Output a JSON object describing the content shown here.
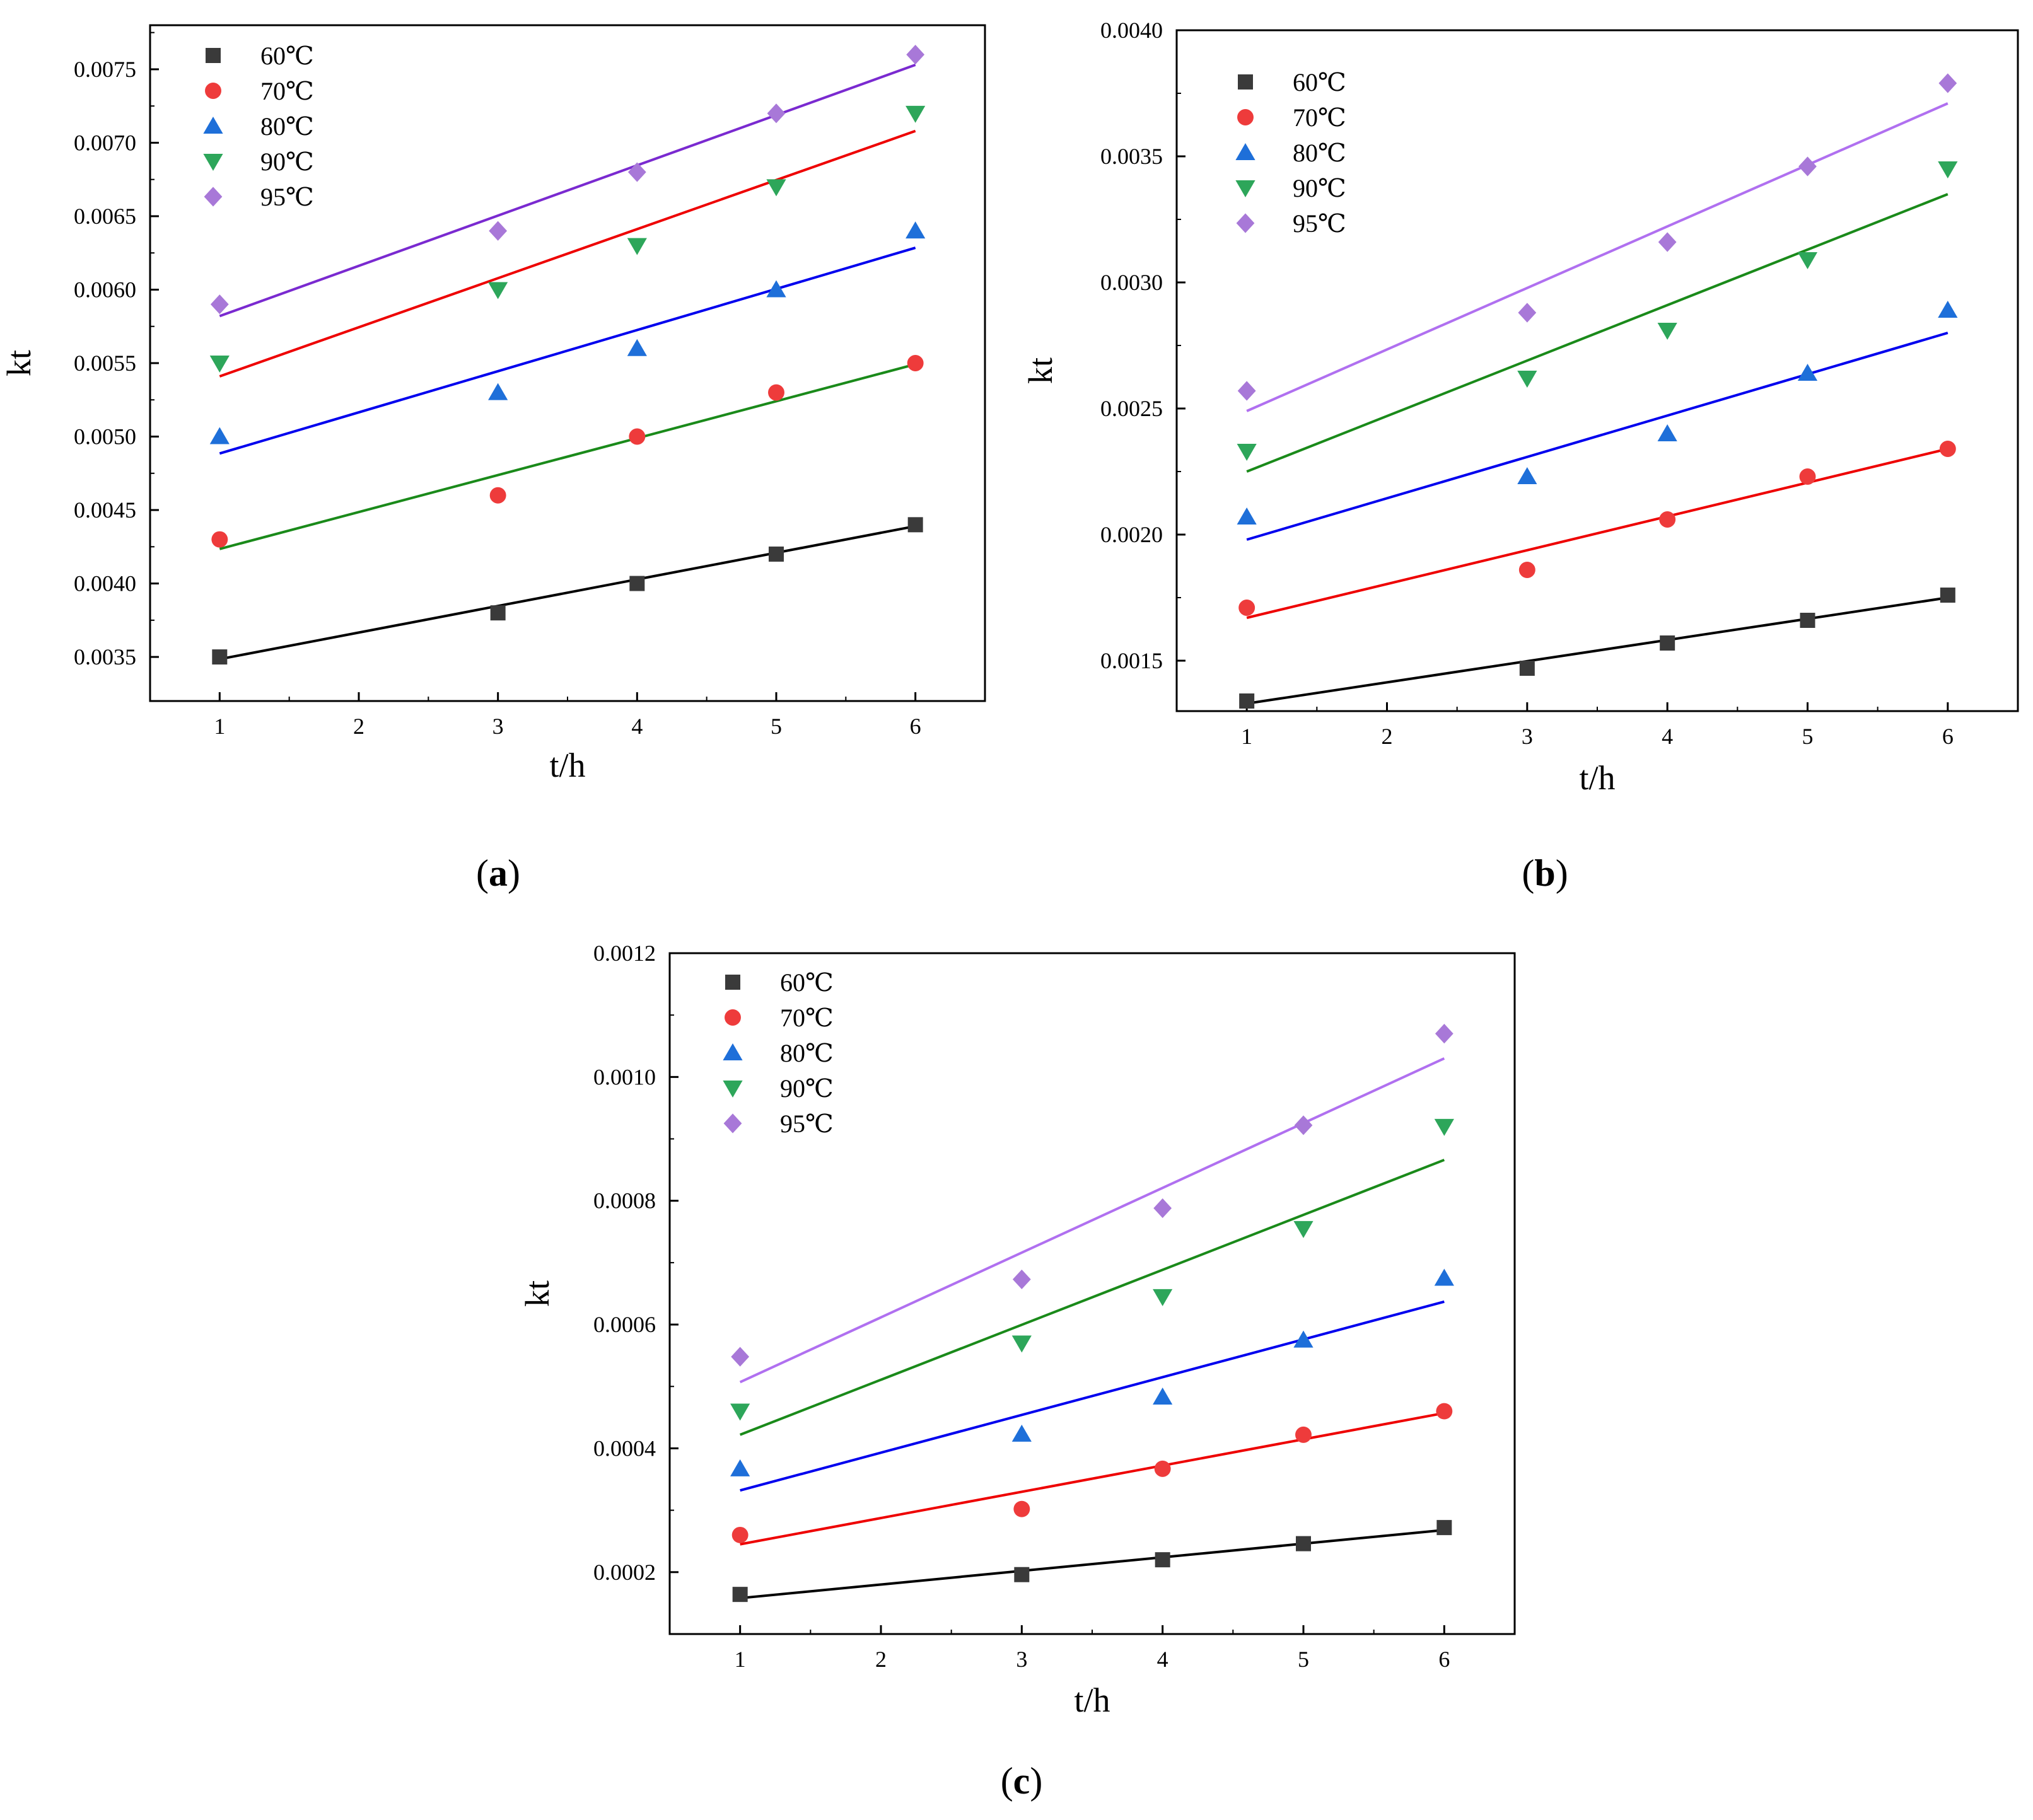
{
  "figure": {
    "panels": [
      {
        "label_open": "(",
        "label_letter": "a",
        "label_close": ")"
      },
      {
        "label_open": "(",
        "label_letter": "b",
        "label_close": ")"
      },
      {
        "label_open": "(",
        "label_letter": "c",
        "label_close": ")"
      }
    ]
  },
  "chart_data": [
    {
      "type": "scatter",
      "panel": "a",
      "title": "",
      "xlabel": "t/h",
      "ylabel": "kt",
      "xlim": [
        0.5,
        6.5
      ],
      "ylim": [
        0.0032,
        0.0078
      ],
      "x_ticks": [
        1,
        2,
        3,
        4,
        5,
        6
      ],
      "x_tick_labels": [
        "1",
        "2",
        "3",
        "4",
        "5",
        "6"
      ],
      "y_ticks": [
        0.0035,
        0.004,
        0.0045,
        0.005,
        0.0055,
        0.006,
        0.0065,
        0.007,
        0.0075
      ],
      "y_tick_labels": [
        "0.0035",
        "0.0040",
        "0.0045",
        "0.0050",
        "0.0055",
        "0.0060",
        "0.0065",
        "0.0070",
        "0.0075"
      ],
      "legend_position": "top-left",
      "x": [
        1,
        3,
        4,
        5,
        6
      ],
      "series": [
        {
          "name": "60℃",
          "marker": "square",
          "marker_color": "#3a3a3a",
          "line_color": "#000000",
          "values": [
            0.0035,
            0.0038,
            0.004,
            0.0042,
            0.0044
          ],
          "fit": [
            0.003485,
            0.00439
          ]
        },
        {
          "name": "70℃",
          "marker": "circle",
          "marker_color": "#ee3b3b",
          "line_color": "#1a8a1a",
          "values": [
            0.0043,
            0.0046,
            0.005,
            0.0053,
            0.0055
          ],
          "fit": [
            0.004235,
            0.005492
          ]
        },
        {
          "name": "80℃",
          "marker": "triangle-up",
          "marker_color": "#1e6fd9",
          "line_color": "#0000ee",
          "values": [
            0.005,
            0.0053,
            0.0056,
            0.006,
            0.0064
          ],
          "fit": [
            0.004885,
            0.006285
          ]
        },
        {
          "name": "90℃",
          "marker": "triangle-down",
          "marker_color": "#2da65a",
          "line_color": "#ee0000",
          "values": [
            0.0055,
            0.006,
            0.0063,
            0.0067,
            0.0072
          ],
          "fit": [
            0.00541,
            0.00708
          ]
        },
        {
          "name": "95℃",
          "marker": "diamond",
          "marker_color": "#a878d8",
          "line_color": "#7a2ad0",
          "values": [
            0.0059,
            0.0064,
            0.0068,
            0.0072,
            0.0076
          ],
          "fit": [
            0.00582,
            0.00753
          ]
        }
      ]
    },
    {
      "type": "scatter",
      "panel": "b",
      "title": "",
      "xlabel": "t/h",
      "ylabel": "kt",
      "xlim": [
        0.5,
        6.5
      ],
      "ylim": [
        0.0013,
        0.004
      ],
      "x_ticks": [
        1,
        2,
        3,
        4,
        5,
        6
      ],
      "x_tick_labels": [
        "1",
        "2",
        "3",
        "4",
        "5",
        "6"
      ],
      "y_ticks": [
        0.0015,
        0.002,
        0.0025,
        0.003,
        0.0035,
        0.004
      ],
      "y_tick_labels": [
        "0.0015",
        "0.0020",
        "0.0025",
        "0.0030",
        "0.0035",
        "0.0040"
      ],
      "legend_position": "top-left",
      "x": [
        1,
        3,
        4,
        5,
        6
      ],
      "series": [
        {
          "name": "60℃",
          "marker": "square",
          "marker_color": "#3a3a3a",
          "line_color": "#000000",
          "values": [
            0.00134,
            0.00147,
            0.00157,
            0.00166,
            0.00176
          ],
          "fit": [
            0.00133,
            0.00175
          ]
        },
        {
          "name": "70℃",
          "marker": "circle",
          "marker_color": "#ee3b3b",
          "line_color": "#ee0000",
          "values": [
            0.00171,
            0.00186,
            0.00206,
            0.00223,
            0.00234
          ],
          "fit": [
            0.00167,
            0.00234
          ]
        },
        {
          "name": "80℃",
          "marker": "triangle-up",
          "marker_color": "#1e6fd9",
          "line_color": "#0000ee",
          "values": [
            0.00207,
            0.00223,
            0.0024,
            0.00264,
            0.00289
          ],
          "fit": [
            0.00198,
            0.0028
          ]
        },
        {
          "name": "90℃",
          "marker": "triangle-down",
          "marker_color": "#2da65a",
          "line_color": "#1a8a1a",
          "values": [
            0.00233,
            0.00262,
            0.00281,
            0.00309,
            0.00345
          ],
          "fit": [
            0.00225,
            0.00335
          ]
        },
        {
          "name": "95℃",
          "marker": "diamond",
          "marker_color": "#a878d8",
          "line_color": "#b070f0",
          "values": [
            0.00257,
            0.00288,
            0.00316,
            0.00346,
            0.00379
          ],
          "fit": [
            0.00249,
            0.00371
          ]
        }
      ]
    },
    {
      "type": "scatter",
      "panel": "c",
      "title": "",
      "xlabel": "t/h",
      "ylabel": "kt",
      "xlim": [
        0.5,
        6.5
      ],
      "ylim": [
        0.0001,
        0.0012
      ],
      "x_ticks": [
        1,
        2,
        3,
        4,
        5,
        6
      ],
      "x_tick_labels": [
        "1",
        "2",
        "3",
        "4",
        "5",
        "6"
      ],
      "y_ticks": [
        0.0002,
        0.0004,
        0.0006,
        0.0008,
        0.001,
        0.0012
      ],
      "y_tick_labels": [
        "0.0002",
        "0.0004",
        "0.0006",
        "0.0008",
        "0.0010",
        "0.0012"
      ],
      "legend_position": "top-left",
      "x": [
        1,
        3,
        4,
        5,
        6
      ],
      "series": [
        {
          "name": "60℃",
          "marker": "square",
          "marker_color": "#3a3a3a",
          "line_color": "#000000",
          "values": [
            0.000164,
            0.000196,
            0.00022,
            0.000246,
            0.000272
          ],
          "fit": [
            0.000158,
            0.000268
          ]
        },
        {
          "name": "70℃",
          "marker": "circle",
          "marker_color": "#ee3b3b",
          "line_color": "#ee0000",
          "values": [
            0.00026,
            0.000302,
            0.000367,
            0.000422,
            0.00046
          ],
          "fit": [
            0.000245,
            0.000457
          ]
        },
        {
          "name": "80℃",
          "marker": "triangle-up",
          "marker_color": "#1e6fd9",
          "line_color": "#0000ee",
          "values": [
            0.000367,
            0.000423,
            0.000483,
            0.000575,
            0.000675
          ],
          "fit": [
            0.000332,
            0.000637
          ]
        },
        {
          "name": "90℃",
          "marker": "triangle-down",
          "marker_color": "#2da65a",
          "line_color": "#1a8a1a",
          "values": [
            0.00046,
            0.00057,
            0.000645,
            0.000755,
            0.00092
          ],
          "fit": [
            0.000422,
            0.000866
          ]
        },
        {
          "name": "95℃",
          "marker": "diamond",
          "marker_color": "#a878d8",
          "line_color": "#b070f0",
          "values": [
            0.000548,
            0.000673,
            0.000788,
            0.000922,
            0.00107
          ],
          "fit": [
            0.000507,
            0.00103
          ]
        }
      ]
    }
  ]
}
